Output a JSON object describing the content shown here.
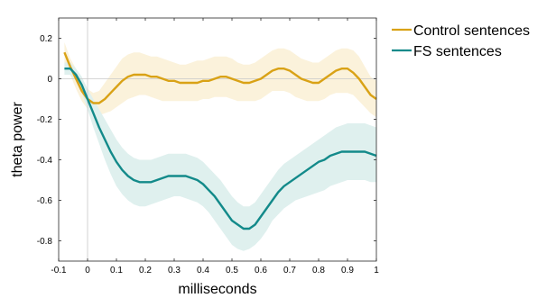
{
  "chart_data": {
    "type": "line",
    "title": "",
    "xlabel": "milliseconds",
    "ylabel": "theta power",
    "xlim": [
      -0.1,
      1.0
    ],
    "ylim": [
      -0.9,
      0.3
    ],
    "xticks": [
      -0.1,
      0,
      0.1,
      0.2,
      0.3,
      0.4,
      0.5,
      0.6,
      0.7,
      0.8,
      0.9,
      1
    ],
    "xtick_labels": [
      "-0.1",
      "0",
      "0.1",
      "0.2",
      "0.3",
      "0.4",
      "0.5",
      "0.6",
      "0.7",
      "0.8",
      "0.9",
      "1"
    ],
    "yticks": [
      0.2,
      0,
      -0.2,
      -0.4,
      -0.6,
      -0.8
    ],
    "ytick_labels": [
      "0.2",
      "0",
      "-0.2",
      "-0.4",
      "-0.6",
      "-0.8"
    ],
    "reference_lines": {
      "y": 0,
      "x": 0
    },
    "grid": false,
    "legend_position": "outside-top-right",
    "x": [
      -0.08,
      -0.06,
      -0.04,
      -0.02,
      0,
      0.02,
      0.04,
      0.06,
      0.08,
      0.1,
      0.12,
      0.14,
      0.16,
      0.18,
      0.2,
      0.22,
      0.24,
      0.26,
      0.28,
      0.3,
      0.32,
      0.34,
      0.36,
      0.38,
      0.4,
      0.42,
      0.44,
      0.46,
      0.48,
      0.5,
      0.52,
      0.54,
      0.56,
      0.58,
      0.6,
      0.62,
      0.64,
      0.66,
      0.68,
      0.7,
      0.72,
      0.74,
      0.76,
      0.78,
      0.8,
      0.82,
      0.84,
      0.86,
      0.88,
      0.9,
      0.92,
      0.94,
      0.96,
      0.98,
      1.0
    ],
    "series": [
      {
        "name": "Control sentences",
        "color": "#D9A216",
        "band_color": "#FBF2DB",
        "values": [
          0.13,
          0.06,
          0.0,
          -0.06,
          -0.1,
          -0.12,
          -0.12,
          -0.1,
          -0.07,
          -0.04,
          -0.01,
          0.01,
          0.02,
          0.02,
          0.02,
          0.01,
          0.01,
          0.0,
          -0.01,
          -0.01,
          -0.02,
          -0.02,
          -0.02,
          -0.02,
          -0.01,
          -0.01,
          0.0,
          0.01,
          0.01,
          0.0,
          -0.01,
          -0.02,
          -0.02,
          -0.01,
          0.0,
          0.02,
          0.04,
          0.05,
          0.05,
          0.04,
          0.02,
          0.0,
          -0.01,
          -0.02,
          -0.02,
          0.0,
          0.02,
          0.04,
          0.05,
          0.05,
          0.03,
          0.0,
          -0.04,
          -0.08,
          -0.1
        ],
        "lower": [
          0.08,
          0.02,
          -0.05,
          -0.11,
          -0.15,
          -0.17,
          -0.18,
          -0.17,
          -0.16,
          -0.14,
          -0.12,
          -0.1,
          -0.09,
          -0.08,
          -0.08,
          -0.09,
          -0.1,
          -0.11,
          -0.11,
          -0.11,
          -0.11,
          -0.11,
          -0.11,
          -0.11,
          -0.1,
          -0.1,
          -0.09,
          -0.09,
          -0.09,
          -0.1,
          -0.11,
          -0.11,
          -0.11,
          -0.11,
          -0.1,
          -0.08,
          -0.06,
          -0.06,
          -0.06,
          -0.07,
          -0.09,
          -0.1,
          -0.11,
          -0.11,
          -0.11,
          -0.1,
          -0.08,
          -0.07,
          -0.07,
          -0.07,
          -0.08,
          -0.11,
          -0.14,
          -0.17,
          -0.19
        ],
        "upper": [
          0.18,
          0.1,
          0.05,
          -0.01,
          -0.05,
          -0.07,
          -0.06,
          -0.02,
          0.02,
          0.06,
          0.1,
          0.12,
          0.13,
          0.13,
          0.12,
          0.11,
          0.11,
          0.1,
          0.09,
          0.08,
          0.07,
          0.07,
          0.08,
          0.09,
          0.09,
          0.1,
          0.11,
          0.11,
          0.11,
          0.1,
          0.08,
          0.07,
          0.07,
          0.08,
          0.1,
          0.12,
          0.14,
          0.15,
          0.15,
          0.14,
          0.12,
          0.1,
          0.09,
          0.08,
          0.08,
          0.1,
          0.12,
          0.14,
          0.15,
          0.15,
          0.14,
          0.11,
          0.06,
          0.01,
          -0.01
        ]
      },
      {
        "name": "FS sentences",
        "color": "#138A8A",
        "band_color": "#DFF0EE",
        "values": [
          0.05,
          0.05,
          0.02,
          -0.03,
          -0.1,
          -0.17,
          -0.24,
          -0.3,
          -0.36,
          -0.41,
          -0.45,
          -0.48,
          -0.5,
          -0.51,
          -0.51,
          -0.51,
          -0.5,
          -0.49,
          -0.48,
          -0.48,
          -0.48,
          -0.48,
          -0.49,
          -0.5,
          -0.52,
          -0.55,
          -0.58,
          -0.62,
          -0.66,
          -0.7,
          -0.72,
          -0.74,
          -0.74,
          -0.72,
          -0.68,
          -0.64,
          -0.6,
          -0.56,
          -0.53,
          -0.51,
          -0.49,
          -0.47,
          -0.45,
          -0.43,
          -0.41,
          -0.4,
          -0.38,
          -0.37,
          -0.36,
          -0.36,
          -0.36,
          -0.36,
          -0.36,
          -0.37,
          -0.38
        ],
        "lower": [
          0.02,
          0.02,
          -0.01,
          -0.07,
          -0.15,
          -0.24,
          -0.32,
          -0.4,
          -0.47,
          -0.53,
          -0.57,
          -0.6,
          -0.62,
          -0.63,
          -0.63,
          -0.62,
          -0.61,
          -0.6,
          -0.59,
          -0.58,
          -0.58,
          -0.59,
          -0.6,
          -0.61,
          -0.63,
          -0.66,
          -0.7,
          -0.74,
          -0.78,
          -0.82,
          -0.84,
          -0.85,
          -0.84,
          -0.82,
          -0.79,
          -0.75,
          -0.7,
          -0.67,
          -0.64,
          -0.62,
          -0.6,
          -0.59,
          -0.58,
          -0.57,
          -0.56,
          -0.55,
          -0.53,
          -0.52,
          -0.51,
          -0.5,
          -0.5,
          -0.5,
          -0.5,
          -0.51,
          -0.51
        ],
        "upper": [
          0.08,
          0.08,
          0.05,
          0.01,
          -0.05,
          -0.1,
          -0.15,
          -0.2,
          -0.25,
          -0.3,
          -0.34,
          -0.37,
          -0.39,
          -0.4,
          -0.4,
          -0.4,
          -0.39,
          -0.38,
          -0.37,
          -0.37,
          -0.37,
          -0.37,
          -0.38,
          -0.39,
          -0.41,
          -0.44,
          -0.47,
          -0.5,
          -0.54,
          -0.58,
          -0.61,
          -0.63,
          -0.63,
          -0.61,
          -0.57,
          -0.53,
          -0.49,
          -0.45,
          -0.42,
          -0.4,
          -0.38,
          -0.36,
          -0.34,
          -0.32,
          -0.3,
          -0.28,
          -0.26,
          -0.24,
          -0.23,
          -0.22,
          -0.22,
          -0.22,
          -0.22,
          -0.23,
          -0.24
        ]
      }
    ]
  }
}
